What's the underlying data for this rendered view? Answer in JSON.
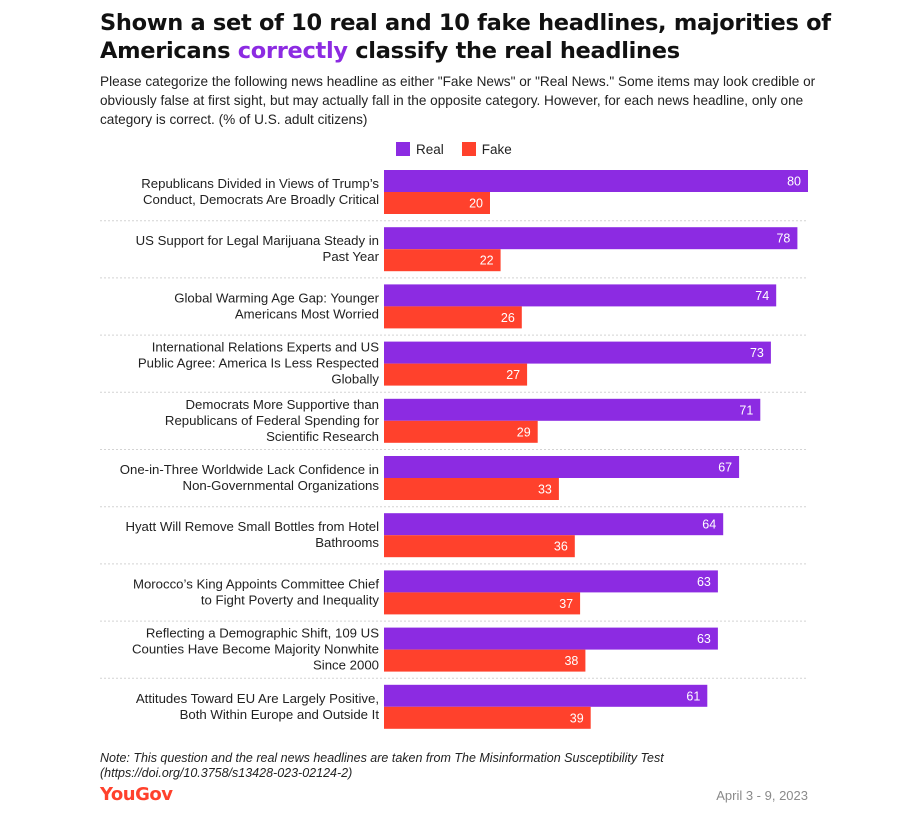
{
  "title_part1": "Shown a set of 10 real and 10 fake headlines, majorities of Americans ",
  "title_highlight": "correctly",
  "title_part2": " classify the real headlines",
  "subtitle": "Please categorize the following news headline as either \"Fake News\" or \"Real News.\" Some items may look credible or obviously false at first sight, but may actually fall in the opposite category. However, for each news headline, only one category is correct. (% of U.S. adult citizens)",
  "note": "Note: This question and the real news headlines are taken from The Misinformation Susceptibility Test (https://doi.org/10.3758/s13428-023-02124-2)",
  "logo": "YouGov",
  "date": "April 3 - 9, 2023",
  "colors": {
    "real": "#8c2be2",
    "fake": "#ff412c",
    "title_highlight": "#8c2be2",
    "logo": "#ff412c"
  },
  "chart_data": {
    "type": "bar",
    "orientation": "horizontal",
    "legend_position": "top",
    "xlim": [
      0,
      80
    ],
    "grid": false,
    "categories": [
      [
        "Republicans Divided in Views of Trump’s",
        "Conduct, Democrats Are Broadly Critical"
      ],
      [
        "US Support for Legal Marijuana Steady in",
        "Past Year"
      ],
      [
        "Global Warming Age Gap: Younger",
        "Americans Most Worried"
      ],
      [
        "International Relations Experts and US",
        "Public Agree: America Is Less Respected",
        "Globally"
      ],
      [
        "Democrats More Supportive than",
        "Republicans of Federal Spending for",
        "Scientific Research"
      ],
      [
        "One-in-Three Worldwide Lack Confidence in",
        "Non-Governmental Organizations"
      ],
      [
        "Hyatt Will Remove Small Bottles from Hotel",
        "Bathrooms"
      ],
      [
        "Morocco’s King Appoints Committee Chief",
        "to Fight Poverty and Inequality"
      ],
      [
        "Reflecting a Demographic Shift, 109 US",
        "Counties Have Become Majority Nonwhite",
        "Since 2000"
      ],
      [
        "Attitudes Toward EU Are Largely Positive,",
        "Both Within Europe and Outside It"
      ]
    ],
    "series": [
      {
        "name": "Real",
        "values": [
          80,
          78,
          74,
          73,
          71,
          67,
          64,
          63,
          63,
          61
        ]
      },
      {
        "name": "Fake",
        "values": [
          20,
          22,
          26,
          27,
          29,
          33,
          36,
          37,
          38,
          39
        ]
      }
    ]
  }
}
